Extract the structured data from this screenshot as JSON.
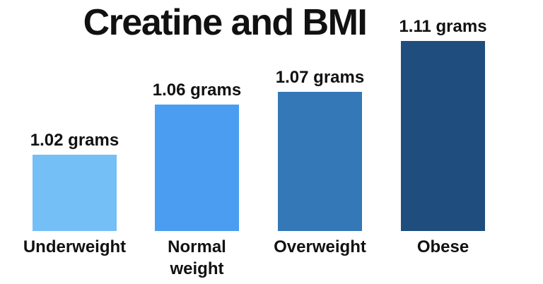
{
  "chart_data": {
    "type": "bar",
    "title": "Creatine and BMI",
    "categories": [
      "Underweight",
      "Normal weight",
      "Overweight",
      "Obese"
    ],
    "category_display": [
      "Underweight",
      "Normal\nweight",
      "Overweight",
      "Obese"
    ],
    "values": [
      1.02,
      1.06,
      1.07,
      1.11
    ],
    "value_labels": [
      "1.02 grams",
      "1.06 grams",
      "1.07 grams",
      "1.11 grams"
    ],
    "unit": "grams",
    "bar_colors": [
      "#74bff6",
      "#4a9df1",
      "#3478b8",
      "#1f4e7e"
    ],
    "xlabel": "",
    "ylabel": "",
    "ylim": [
      0.96,
      1.11
    ],
    "grid": false,
    "legend": false,
    "value_label_position": "above-bar",
    "background_color": "#ffffff",
    "text_color": "#111111"
  }
}
